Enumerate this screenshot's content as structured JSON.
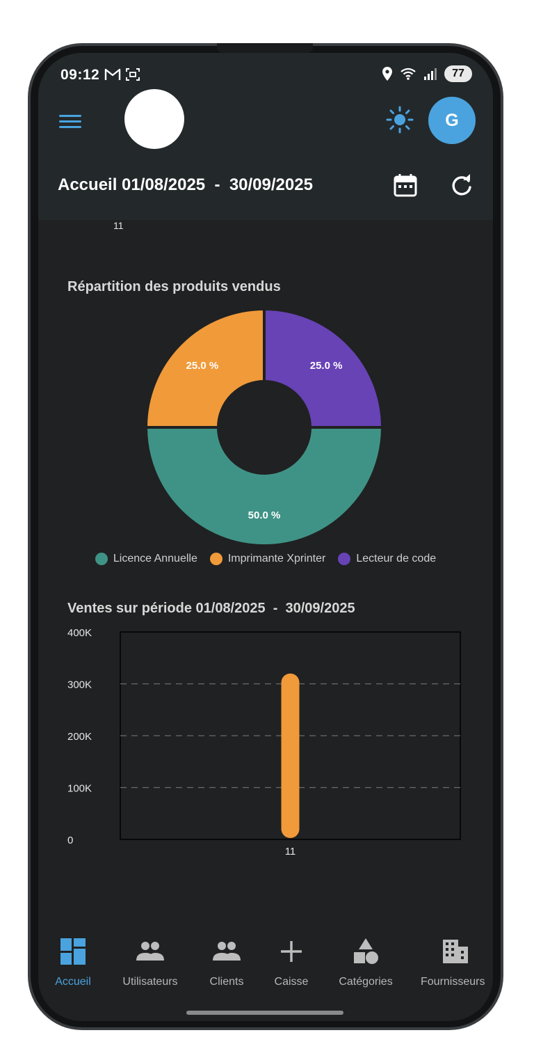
{
  "status_bar": {
    "time": "09:12",
    "battery": "77",
    "icons": [
      "gmail-icon",
      "screenshot-icon",
      "location-icon",
      "wifi-icon",
      "signal-icon",
      "battery-icon"
    ]
  },
  "app_bar": {
    "title": "Accueil 01/08/2025  -  30/09/2025",
    "avatar_initial": "G",
    "icons": [
      "menu-icon",
      "sun-icon",
      "calendar-icon",
      "refresh-icon"
    ]
  },
  "top_tick": "11",
  "pie_section": {
    "title": "Répartition des produits vendus",
    "slices": [
      {
        "label": "Licence Annuelle",
        "percent_label": "50.0 %",
        "color": "#3f9386"
      },
      {
        "label": "Imprimante Xprinter",
        "percent_label": "25.0 %",
        "color": "#f09a3a"
      },
      {
        "label": "Lecteur de code",
        "percent_label": "25.0 %",
        "color": "#6743b6"
      }
    ]
  },
  "chart_data": [
    {
      "type": "pie",
      "title": "Répartition des produits vendus",
      "categories": [
        "Licence Annuelle",
        "Imprimante Xprinter",
        "Lecteur de code"
      ],
      "values": [
        50.0,
        25.0,
        25.0
      ],
      "colors": [
        "#3f9386",
        "#f09a3a",
        "#6743b6"
      ],
      "donut": true,
      "legend": "bottom"
    },
    {
      "type": "bar",
      "title": "Ventes sur période 01/08/2025  -  30/09/2025",
      "categories": [
        "11"
      ],
      "values": [
        320000
      ],
      "ylim": [
        0,
        400000
      ],
      "yticks": [
        "0",
        "100K",
        "200K",
        "300K",
        "400K"
      ],
      "grid": true,
      "bar_color": "#f09a3a"
    }
  ],
  "bar_section": {
    "title": "Ventes sur période 01/08/2025  -  30/09/2025"
  },
  "bottom_nav": {
    "items": [
      {
        "label": "Accueil",
        "icon": "dashboard-icon",
        "active": true
      },
      {
        "label": "Utilisateurs",
        "icon": "users-icon",
        "active": false
      },
      {
        "label": "Clients",
        "icon": "clients-icon",
        "active": false
      },
      {
        "label": "Caisse",
        "icon": "plus-icon",
        "active": false
      },
      {
        "label": "Catégories",
        "icon": "shapes-icon",
        "active": false
      },
      {
        "label": "Fournisseurs",
        "icon": "building-icon",
        "active": false
      }
    ]
  },
  "colors": {
    "accent": "#4aa3de",
    "background": "#202122",
    "app_bar": "#23282b"
  }
}
